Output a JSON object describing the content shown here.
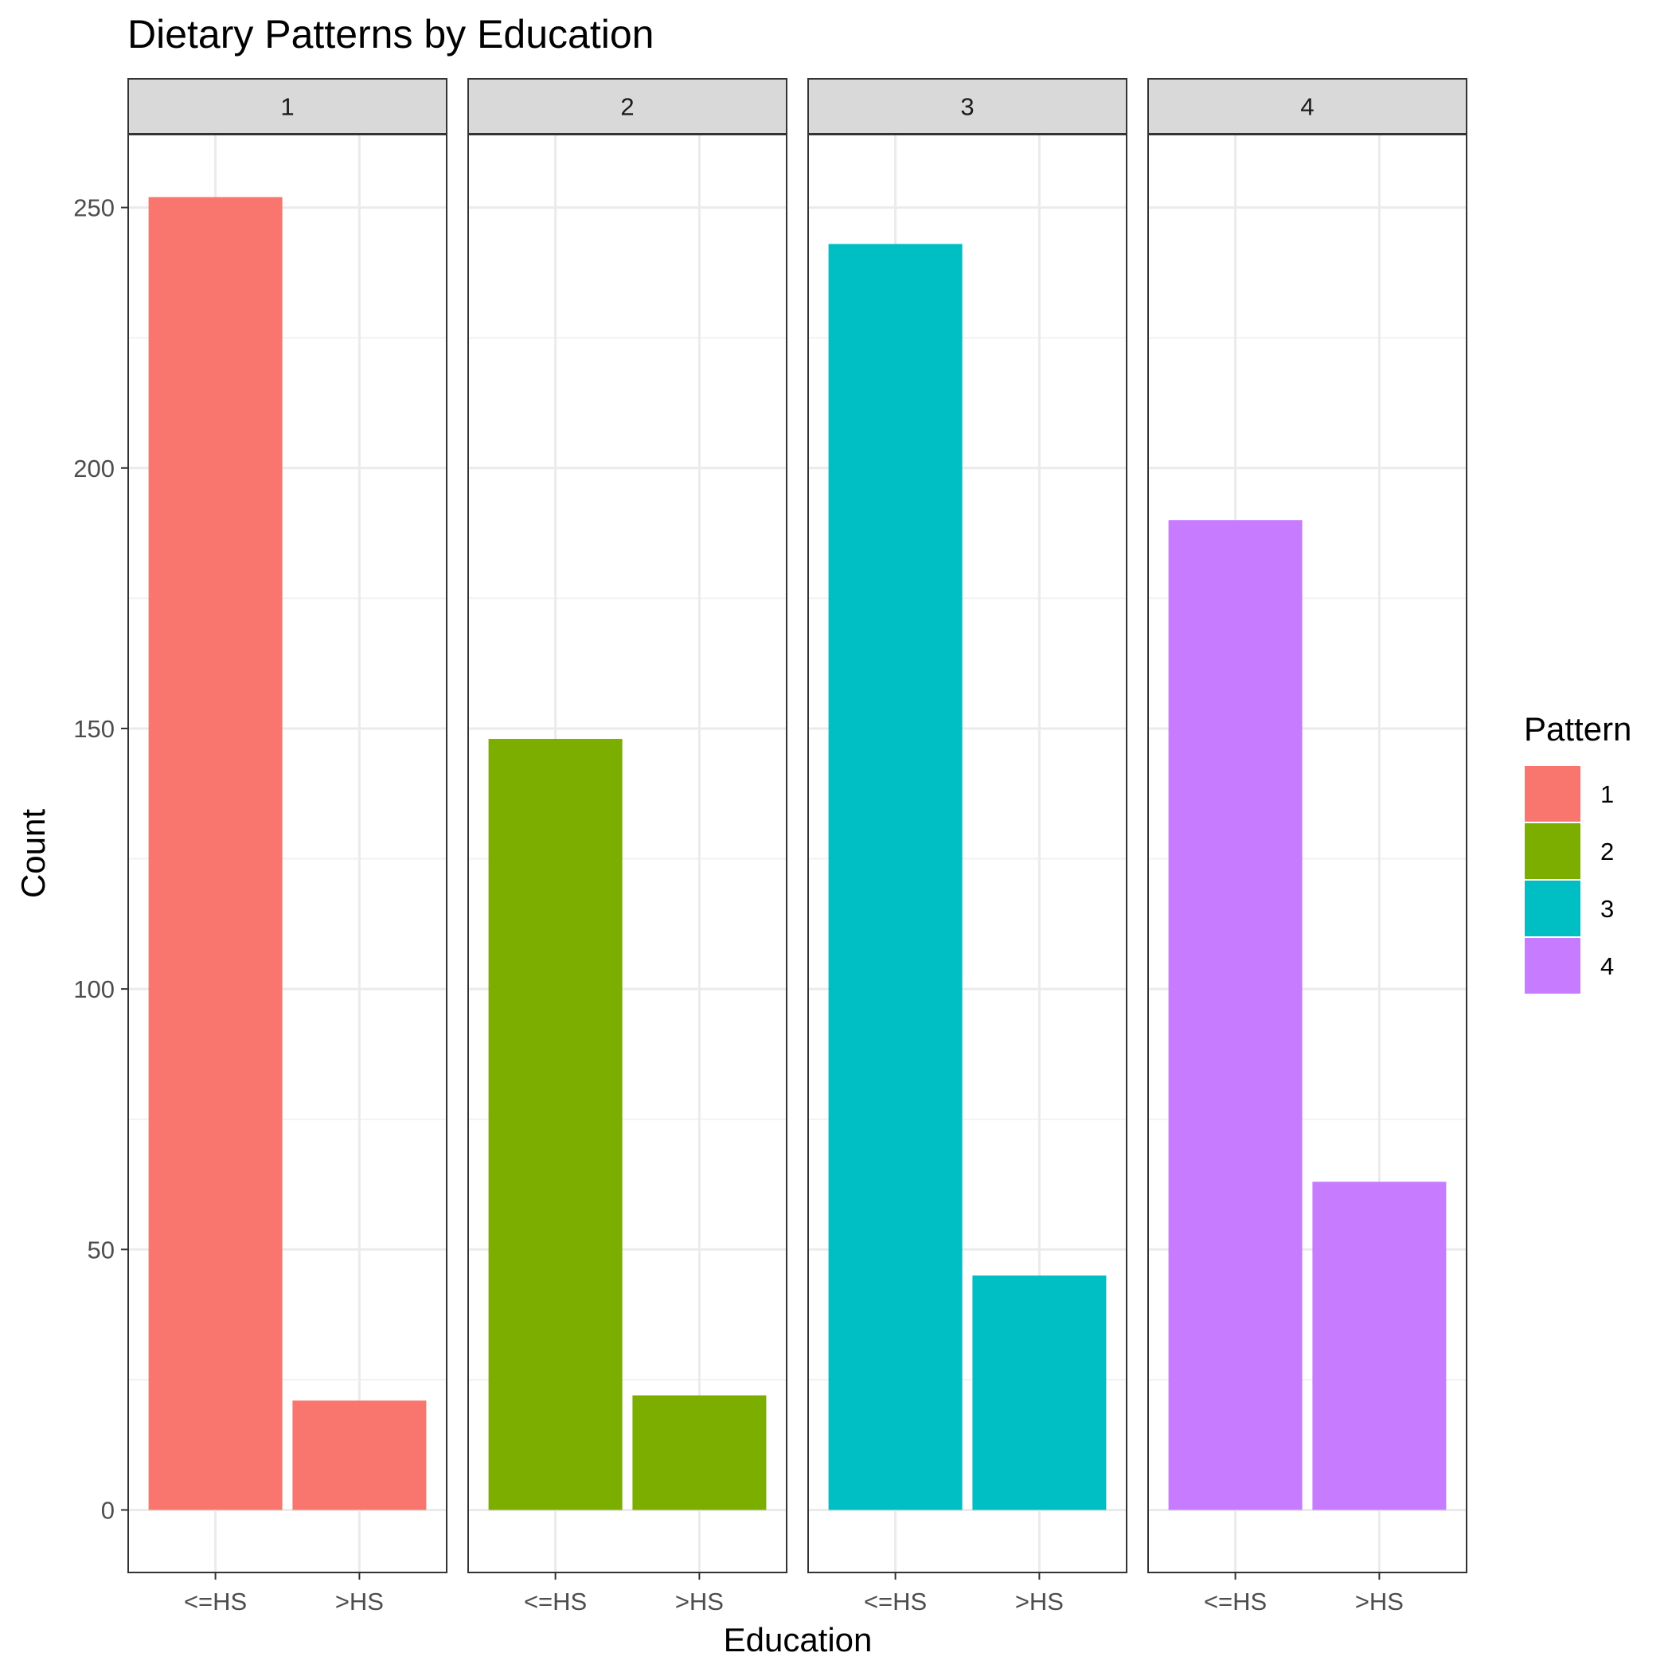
{
  "chart_data": {
    "type": "bar",
    "title": "Dietary Patterns by Education",
    "xlabel": "Education",
    "ylabel": "Count",
    "ylim": [
      -12,
      264
    ],
    "y_ticks": [
      0,
      50,
      100,
      150,
      200,
      250
    ],
    "categories": [
      "<=HS",
      ">HS"
    ],
    "grid": true,
    "legend": {
      "title": "Pattern",
      "placement": "right",
      "entries": [
        "1",
        "2",
        "3",
        "4"
      ]
    },
    "facets": [
      {
        "name": "1",
        "color": "#F8766D",
        "values": [
          252,
          21
        ]
      },
      {
        "name": "2",
        "color": "#7CAE00",
        "values": [
          148,
          22
        ]
      },
      {
        "name": "3",
        "color": "#00BFC4",
        "values": [
          243,
          45
        ]
      },
      {
        "name": "4",
        "color": "#C77CFF",
        "values": [
          190,
          63
        ]
      }
    ]
  }
}
